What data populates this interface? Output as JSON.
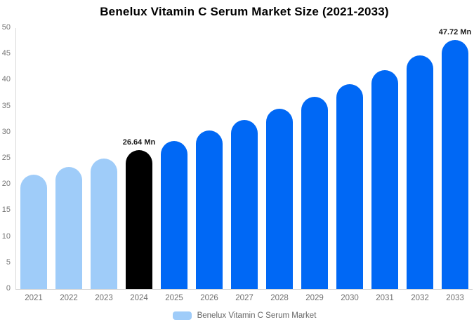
{
  "title": "Benelux Vitamin C Serum Market Size (2021-2033)",
  "legend": {
    "label": "Benelux Vitamin C Serum Market",
    "swatch_color": "#9fccf9"
  },
  "colors": {
    "historical_bar": "#9fccf9",
    "highlight_bar": "#000000",
    "forecast_bar": "#0068f5",
    "axis_text": "#767676",
    "axis_line": "#d8d8d8",
    "data_label_text": "#1a1a1a"
  },
  "chart_data": {
    "type": "bar",
    "title": "Benelux Vitamin C Serum Market Size (2021-2033)",
    "xlabel": "",
    "ylabel": "",
    "categories": [
      "2021",
      "2022",
      "2023",
      "2024",
      "2025",
      "2026",
      "2027",
      "2028",
      "2029",
      "2030",
      "2031",
      "2032",
      "2033"
    ],
    "values": [
      21.93,
      23.4,
      24.97,
      26.64,
      28.42,
      30.32,
      32.35,
      34.52,
      36.83,
      39.3,
      41.93,
      44.73,
      47.72
    ],
    "unit": "Mn",
    "bar_colors": [
      "#9fccf9",
      "#9fccf9",
      "#9fccf9",
      "#000000",
      "#0068f5",
      "#0068f5",
      "#0068f5",
      "#0068f5",
      "#0068f5",
      "#0068f5",
      "#0068f5",
      "#0068f5",
      "#0068f5"
    ],
    "data_labels": [
      {
        "index": 3,
        "text": "26.64 Mn"
      },
      {
        "index": 12,
        "text": "47.72 Mn"
      }
    ],
    "ylim": [
      0,
      50
    ],
    "yticks": [
      0,
      5,
      10,
      15,
      20,
      25,
      30,
      35,
      40,
      45,
      50
    ],
    "grid": false,
    "legend_entries": [
      "Benelux Vitamin C Serum Market"
    ],
    "legend_position": "bottom"
  }
}
